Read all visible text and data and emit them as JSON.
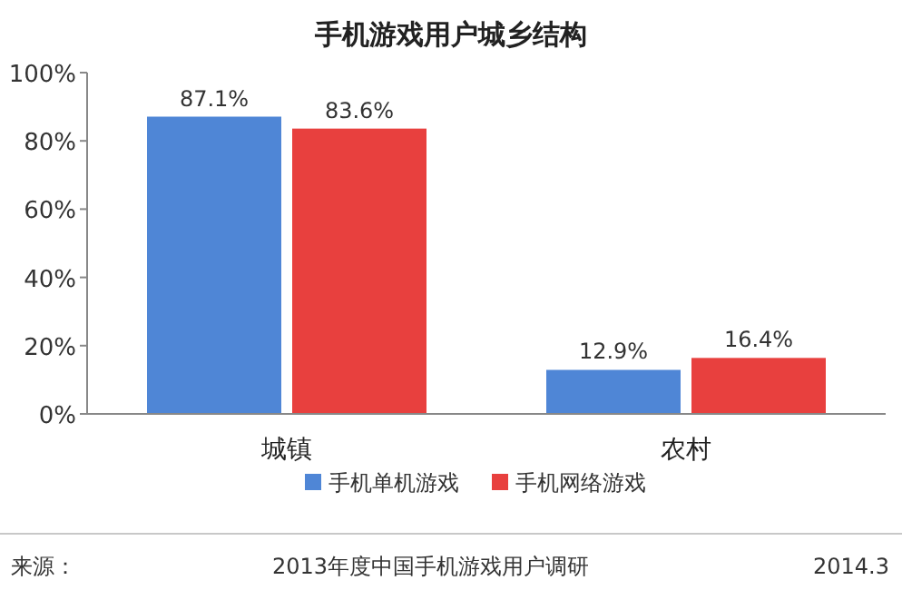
{
  "chart_data": {
    "type": "bar",
    "title": "手机游戏用户城乡结构",
    "categories": [
      "城镇",
      "农村"
    ],
    "series": [
      {
        "name": "手机单机游戏",
        "color": "#4f86d6",
        "values": [
          87.1,
          12.9
        ]
      },
      {
        "name": "手机网络游戏",
        "color": "#e8403e",
        "values": [
          83.6,
          16.4
        ]
      }
    ],
    "ylim": [
      0,
      100
    ],
    "yticks": [
      {
        "value": 0,
        "label": "0%"
      },
      {
        "value": 20,
        "label": "20%"
      },
      {
        "value": 40,
        "label": "40%"
      },
      {
        "value": 60,
        "label": "60%"
      },
      {
        "value": 80,
        "label": "80%"
      },
      {
        "value": 100,
        "label": "100%"
      }
    ],
    "value_labels": [
      [
        "87.1%",
        "12.9%"
      ],
      [
        "83.6%",
        "16.4%"
      ]
    ],
    "legend": "bottom",
    "grid": false,
    "annotations": [
      "来源：",
      "2013年度中国手机游戏用户调研",
      "2014.3"
    ]
  }
}
